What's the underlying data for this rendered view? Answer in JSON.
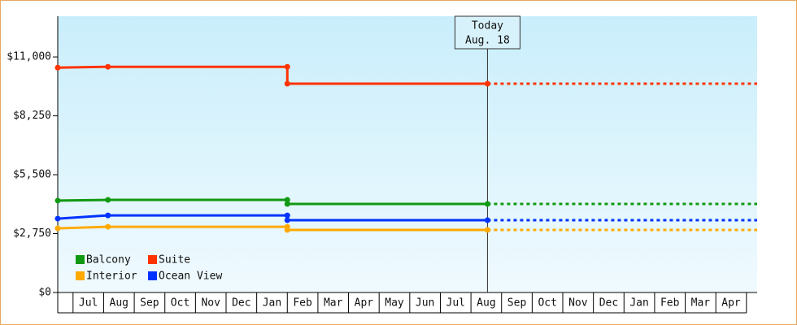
{
  "chart_data": {
    "type": "line",
    "categories": [
      "Jul",
      "Aug",
      "Sep",
      "Oct",
      "Nov",
      "Dec",
      "Jan",
      "Feb",
      "Mar",
      "Apr",
      "May",
      "Jun",
      "Jul",
      "Aug",
      "Sep",
      "Oct",
      "Nov",
      "Dec",
      "Jan",
      "Feb",
      "Mar",
      "Apr"
    ],
    "x": [
      -0.5,
      1.14,
      7.0,
      7.0,
      13.54
    ],
    "xlim": [
      -0.5,
      22.35
    ],
    "series": [
      {
        "name": "Balcony",
        "color": "#119911",
        "values": [
          4290,
          4325,
          4325,
          4135,
          4135
        ]
      },
      {
        "name": "Suite",
        "color": "#ff3300",
        "values": [
          10500,
          10540,
          10540,
          9750,
          9750
        ]
      },
      {
        "name": "Interior",
        "color": "#ffaa00",
        "values": [
          2995,
          3070,
          3070,
          2920,
          2920
        ]
      },
      {
        "name": "Ocean View",
        "color": "#0033ff",
        "values": [
          3450,
          3600,
          3600,
          3375,
          3375
        ]
      }
    ],
    "ylim": [
      0,
      12900
    ],
    "yticks": [
      {
        "value": 0,
        "label": "$0"
      },
      {
        "value": 2750,
        "label": "$2,750"
      },
      {
        "value": 5500,
        "label": "$5,500"
      },
      {
        "value": 8250,
        "label": "$8,250"
      },
      {
        "value": 11000,
        "label": "$11,000"
      }
    ],
    "today": {
      "x": 13.54,
      "label": "Today",
      "date": "Aug. 18"
    }
  }
}
